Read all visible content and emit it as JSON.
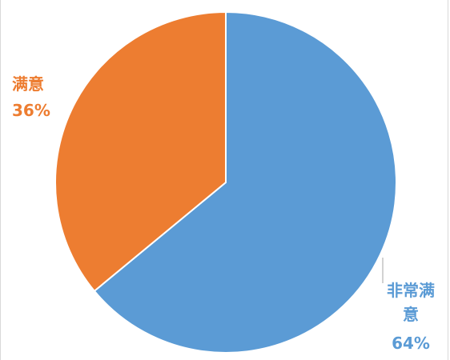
{
  "chart_data": {
    "type": "pie",
    "title": "",
    "slices": [
      {
        "label": "非常满意",
        "value": 64,
        "value_label": "64%",
        "color": "#5B9BD5"
      },
      {
        "label": "满意",
        "value": 36,
        "value_label": "36%",
        "color": "#ED7D31"
      }
    ],
    "legend": "none"
  }
}
